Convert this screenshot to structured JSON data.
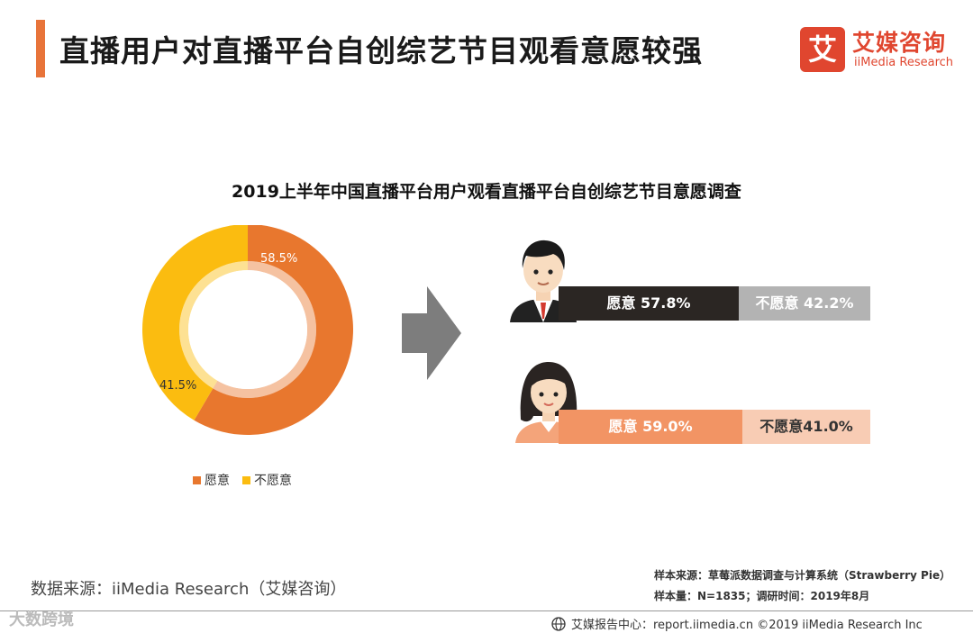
{
  "header": {
    "title": "直播用户对直播平台自创综艺节目观看意愿较强",
    "logo_mark": "艾",
    "logo_cn": "艾媒咨询",
    "logo_en": "iiMedia Research"
  },
  "chart_data": [
    {
      "type": "pie",
      "title": "2019上半年中国直播平台用户观看直播平台自创综艺节目意愿调查",
      "categories": [
        "愿意",
        "不愿意"
      ],
      "values": [
        58.5,
        41.5
      ],
      "value_labels": [
        "58.5%",
        "41.5%"
      ],
      "colors": [
        "#e8772e",
        "#fbbc10"
      ],
      "legend_position": "bottom"
    },
    {
      "type": "bar",
      "orientation": "horizontal",
      "stacked": true,
      "categories": [
        "男",
        "女"
      ],
      "series": [
        {
          "name": "愿意",
          "values": [
            57.8,
            59.0
          ],
          "labels": [
            "愿意 57.8%",
            "愿意 59.0%"
          ],
          "colors": [
            "#2b2623",
            "#f29464"
          ]
        },
        {
          "name": "不愿意",
          "values": [
            42.2,
            41.0
          ],
          "labels": [
            "不愿意 42.2%",
            "不愿意41.0%"
          ],
          "colors": [
            "#b3b3b3",
            "#f8ccb4"
          ]
        }
      ]
    }
  ],
  "sources": {
    "left": "数据来源：iiMedia Research（艾媒咨询）",
    "sample_source": "样本来源：草莓派数据调查与计算系统（Strawberry Pie）",
    "sample_size": "样本量：N=1835；调研时间：2019年8月"
  },
  "footer": {
    "text": "艾媒报告中心：report.iimedia.cn  ©2019  iiMedia Research  Inc",
    "watermark": "大数跨境"
  }
}
